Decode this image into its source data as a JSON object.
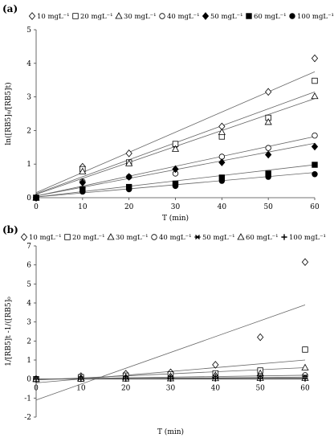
{
  "chart_data": [
    {
      "panel_label": "(a)",
      "type": "scatter",
      "xlabel": "T (min)",
      "ylabel": "ln([RB5]₀/[RB5]t)",
      "xlim": [
        0,
        60
      ],
      "ylim": [
        0,
        5
      ],
      "x_ticks": [
        "0",
        "10",
        "20",
        "30",
        "40",
        "50",
        "60"
      ],
      "y_ticks": [
        "0",
        "1",
        "2",
        "3",
        "4",
        "5"
      ],
      "legend_position": "top",
      "gridlines": false,
      "series": [
        {
          "name": "10 mgL⁻¹",
          "marker": "diamond-open",
          "x": [
            0,
            10,
            20,
            30,
            40,
            50,
            60
          ],
          "y": [
            0,
            0.92,
            1.32,
            1.55,
            2.12,
            3.15,
            4.15
          ],
          "fit": [
            0.15,
            3.75
          ]
        },
        {
          "name": "20 mgL⁻¹",
          "marker": "square-open",
          "x": [
            0,
            10,
            20,
            30,
            40,
            50,
            60
          ],
          "y": [
            0,
            0.85,
            1.05,
            1.6,
            1.82,
            2.38,
            3.48
          ],
          "fit": [
            0.12,
            3.15
          ]
        },
        {
          "name": "30 mgL⁻¹",
          "marker": "triangle-open",
          "x": [
            0,
            10,
            20,
            30,
            40,
            50,
            60
          ],
          "y": [
            0,
            0.78,
            1.02,
            1.45,
            1.95,
            2.25,
            3.02
          ],
          "fit": [
            0.1,
            2.95
          ]
        },
        {
          "name": "40 mgL⁻¹",
          "marker": "circle-open",
          "x": [
            0,
            10,
            20,
            30,
            40,
            50,
            60
          ],
          "y": [
            0,
            0.48,
            0.62,
            0.72,
            1.22,
            1.48,
            1.85
          ],
          "fit": [
            0.05,
            1.82
          ]
        },
        {
          "name": "50 mgL⁻¹",
          "marker": "diamond-filled",
          "x": [
            0,
            10,
            20,
            30,
            40,
            50,
            60
          ],
          "y": [
            0,
            0.45,
            0.62,
            0.85,
            1.05,
            1.28,
            1.52
          ],
          "fit": [
            0.05,
            1.62
          ]
        },
        {
          "name": "60 mgL⁻¹",
          "marker": "square-filled",
          "x": [
            0,
            10,
            20,
            30,
            40,
            50,
            60
          ],
          "y": [
            0,
            0.25,
            0.32,
            0.42,
            0.6,
            0.72,
            0.98
          ],
          "fit": [
            0.02,
            0.98
          ]
        },
        {
          "name": "100 mgL⁻¹",
          "marker": "circle-filled",
          "x": [
            0,
            10,
            20,
            30,
            40,
            50,
            60
          ],
          "y": [
            0,
            0.18,
            0.25,
            0.35,
            0.5,
            0.62,
            0.7
          ],
          "fit": [
            0.02,
            0.75
          ]
        }
      ]
    },
    {
      "panel_label": "(b)",
      "type": "scatter",
      "xlabel": "T (min)",
      "ylabel": "1/[RB5]t -1/([RB5]₀",
      "xlim": [
        0,
        60
      ],
      "ylim": [
        -2,
        7
      ],
      "x_ticks": [
        "0",
        "10",
        "20",
        "30",
        "40",
        "50",
        "60"
      ],
      "y_ticks": [
        "-2",
        "-1",
        "0",
        "1",
        "2",
        "3",
        "4",
        "5",
        "6",
        "7"
      ],
      "legend_position": "top",
      "gridlines": false,
      "series": [
        {
          "name": "10 mgL⁻¹",
          "marker": "diamond-open",
          "x": [
            0,
            10,
            20,
            30,
            40,
            50,
            60
          ],
          "y": [
            0,
            0.15,
            0.28,
            0.35,
            0.75,
            2.2,
            6.15
          ],
          "fit": [
            -1.1,
            3.9
          ]
        },
        {
          "name": "20 mgL⁻¹",
          "marker": "square-open",
          "x": [
            0,
            10,
            20,
            30,
            40,
            50,
            60
          ],
          "y": [
            0,
            0.1,
            0.18,
            0.25,
            0.3,
            0.45,
            1.55
          ],
          "fit": [
            -0.2,
            1.0
          ]
        },
        {
          "name": "30 mgL⁻¹",
          "marker": "triangle-open",
          "x": [
            0,
            10,
            20,
            30,
            40,
            50,
            60
          ],
          "y": [
            0,
            0.05,
            0.1,
            0.15,
            0.2,
            0.3,
            0.6
          ],
          "fit": [
            -0.05,
            0.6
          ]
        },
        {
          "name": "40 mgL⁻¹",
          "marker": "circle-open",
          "x": [
            0,
            10,
            20,
            30,
            40,
            50,
            60
          ],
          "y": [
            0,
            0.02,
            0.05,
            0.08,
            0.12,
            0.15,
            0.2
          ],
          "fit": [
            0,
            0.2
          ]
        },
        {
          "name": "50 mgL⁻¹",
          "marker": "star",
          "x": [
            0,
            10,
            20,
            30,
            40,
            50,
            60
          ],
          "y": [
            0,
            0.02,
            0.05,
            0.06,
            0.08,
            0.1,
            0.12
          ],
          "fit": [
            0,
            0.1
          ]
        },
        {
          "name": "60 mgL⁻¹",
          "marker": "triangle-open",
          "x": [
            0,
            10,
            20,
            30,
            40,
            50,
            60
          ],
          "y": [
            0,
            0.01,
            0.02,
            0.03,
            0.04,
            0.05,
            0.05
          ],
          "fit": [
            0,
            0.05
          ]
        },
        {
          "name": "100 mgL⁻¹",
          "marker": "plus",
          "x": [
            0,
            10,
            20,
            30,
            40,
            50,
            60
          ],
          "y": [
            0,
            0,
            0.01,
            0.01,
            0.02,
            0.02,
            0.02
          ],
          "fit": [
            0,
            0.02
          ]
        }
      ]
    }
  ]
}
